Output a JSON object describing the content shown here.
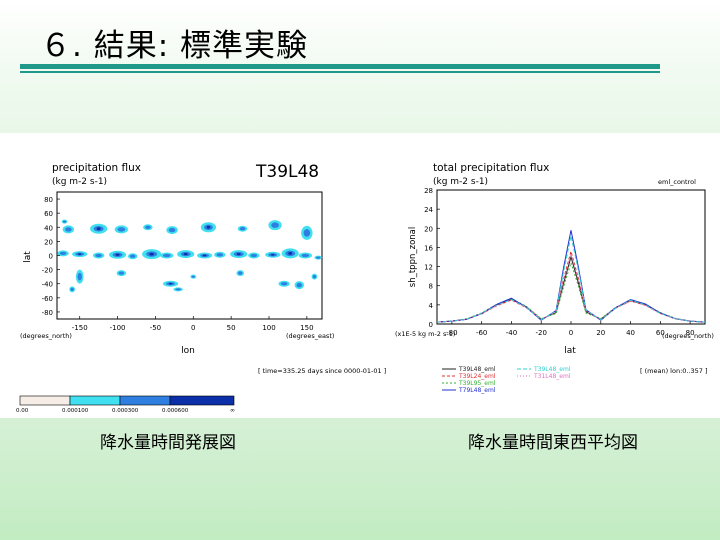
{
  "slide": {
    "title": "６. 結果: 標準実験"
  },
  "left_figure": {
    "title": "precipitation flux",
    "units": "(kg m-2 s-1)",
    "model_label": "T39L48",
    "ylabel": "lat",
    "xlabel": "lon",
    "x_unit_label": "(degrees_east)",
    "y_unit_label": "(degrees_north)",
    "y_ticks": [
      "80",
      "60",
      "40",
      "20",
      "0",
      "-20",
      "-40",
      "-60",
      "-80"
    ],
    "x_ticks": [
      "-150",
      "-100",
      "-50",
      "0",
      "50",
      "100",
      "150"
    ],
    "time_note": "[ time=335.25 days since 0000-01-01 ]",
    "colorbar_labels": [
      "0.00",
      "0.000100",
      "0.000300",
      "0.000600",
      "∞"
    ],
    "colors": {
      "c1": "#40e0f0",
      "c2": "#2f7fe0",
      "c3": "#0a2fa8",
      "c0": "#f5ede6"
    },
    "caption": "降水量時間発展図"
  },
  "right_figure": {
    "title": "total precipitation flux",
    "units": "(kg m-2 s-1)",
    "run_label": "eml_control",
    "ylabel": "sh_tppn_zonal",
    "xlabel": "lat",
    "scale_note": "(x1E-5 kg m-2 s-1)",
    "x_unit_label": "(degrees_north)",
    "mean_note": "[ (mean) lon:0..357 ]",
    "caption": "降水量時間東西平均図",
    "legend": [
      "T39L48_eml",
      "T39L24_eml",
      "T39L95_eml",
      "T79L48_eml",
      "T39L48_eml",
      "T31L48_eml"
    ],
    "series_colors": [
      "#222222",
      "#e03030",
      "#30b030",
      "#2030d0",
      "#30d0d0",
      "#e070c0"
    ]
  },
  "chart_data": {
    "type": "line",
    "title": "total precipitation flux",
    "xlabel": "lat",
    "ylabel": "sh_tppn_zonal",
    "xlim": [
      -90,
      90
    ],
    "ylim": [
      0,
      28
    ],
    "x_ticks": [
      -80,
      -60,
      -40,
      -20,
      0,
      20,
      40,
      60,
      80
    ],
    "y_ticks": [
      0,
      4,
      8,
      12,
      16,
      20,
      24,
      28
    ],
    "x": [
      -90,
      -80,
      -70,
      -60,
      -50,
      -40,
      -30,
      -20,
      -10,
      -5,
      0,
      5,
      10,
      20,
      30,
      40,
      50,
      60,
      70,
      80,
      90
    ],
    "series": [
      {
        "name": "T39L48_eml",
        "values": [
          0.4,
          0.6,
          1.0,
          2.2,
          4.0,
          5.2,
          3.6,
          1.0,
          2.4,
          8.5,
          14.0,
          8.6,
          2.6,
          1.0,
          3.4,
          4.9,
          4.0,
          2.3,
          1.1,
          0.6,
          0.4
        ]
      },
      {
        "name": "T39L24_eml",
        "values": [
          0.4,
          0.6,
          1.0,
          2.1,
          3.8,
          5.0,
          3.4,
          0.9,
          2.6,
          9.4,
          15.2,
          9.5,
          2.8,
          0.9,
          3.3,
          4.8,
          3.9,
          2.2,
          1.1,
          0.6,
          0.4
        ]
      },
      {
        "name": "T39L95_eml",
        "values": [
          0.4,
          0.6,
          1.1,
          2.3,
          4.1,
          5.3,
          3.7,
          1.1,
          2.2,
          7.8,
          12.8,
          7.9,
          2.3,
          1.1,
          3.5,
          5.0,
          4.1,
          2.4,
          1.2,
          0.6,
          0.4
        ]
      },
      {
        "name": "T79L48_eml",
        "values": [
          0.4,
          0.6,
          1.0,
          2.2,
          4.1,
          5.4,
          3.5,
          0.8,
          2.8,
          11.8,
          19.6,
          11.9,
          3.0,
          0.8,
          3.4,
          5.1,
          4.2,
          2.3,
          1.1,
          0.6,
          0.4
        ]
      },
      {
        "name": "T39L48_eml",
        "values": [
          0.4,
          0.6,
          1.0,
          2.2,
          3.9,
          5.1,
          3.5,
          0.9,
          2.7,
          11.0,
          18.4,
          11.2,
          2.9,
          0.9,
          3.3,
          5.0,
          4.0,
          2.2,
          1.1,
          0.6,
          0.4
        ]
      },
      {
        "name": "T31L48_eml",
        "values": [
          0.4,
          0.6,
          1.0,
          2.1,
          3.9,
          5.0,
          3.5,
          1.0,
          2.5,
          9.0,
          14.6,
          9.1,
          2.7,
          1.0,
          3.4,
          4.8,
          3.9,
          2.2,
          1.1,
          0.6,
          0.4
        ]
      }
    ]
  }
}
